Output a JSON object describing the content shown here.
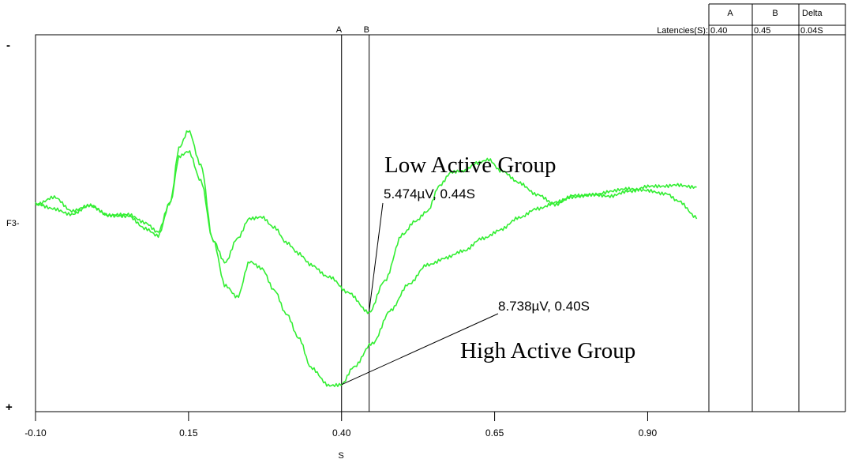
{
  "chart_data": {
    "type": "line",
    "xlabel": "S",
    "channel_label": "F3-",
    "polarity_top": "-",
    "polarity_bottom": "+",
    "xlim": [
      -0.1,
      1.0
    ],
    "x_ticks": [
      "-0.10",
      "0.15",
      "0.40",
      "0.65",
      "0.90"
    ],
    "cursors": [
      {
        "label": "A",
        "x": 0.4
      },
      {
        "label": "B",
        "x": 0.445
      }
    ],
    "latency_table": {
      "row_label": "Latencies(S):",
      "headers": [
        "A",
        "B",
        "Delta"
      ],
      "values": [
        "0.40",
        "0.45",
        "0.04S"
      ]
    },
    "series": [
      {
        "label": "Low Active Group",
        "color": "#33ee33",
        "points": [
          [
            -0.1,
            2.2
          ],
          [
            -0.07,
            3.2
          ],
          [
            -0.04,
            1.3
          ],
          [
            -0.01,
            2.1
          ],
          [
            0.02,
            1.0
          ],
          [
            0.05,
            0.9
          ],
          [
            0.08,
            0.0
          ],
          [
            0.1,
            -1.0
          ],
          [
            0.12,
            2.5
          ],
          [
            0.135,
            9.0
          ],
          [
            0.15,
            11.0
          ],
          [
            0.17,
            7.0
          ],
          [
            0.19,
            -2.0
          ],
          [
            0.21,
            -4.8
          ],
          [
            0.23,
            -2.0
          ],
          [
            0.25,
            0.5
          ],
          [
            0.27,
            0.8
          ],
          [
            0.29,
            -0.5
          ],
          [
            0.31,
            -2.5
          ],
          [
            0.33,
            -3.8
          ],
          [
            0.35,
            -5.0
          ],
          [
            0.38,
            -6.5
          ],
          [
            0.41,
            -8.5
          ],
          [
            0.445,
            -10.7
          ],
          [
            0.47,
            -7.0
          ],
          [
            0.5,
            -1.5
          ],
          [
            0.52,
            0.2
          ],
          [
            0.54,
            1.5
          ],
          [
            0.56,
            4.5
          ],
          [
            0.58,
            6.0
          ],
          [
            0.6,
            6.2
          ],
          [
            0.62,
            7.3
          ],
          [
            0.64,
            7.7
          ],
          [
            0.66,
            6.2
          ],
          [
            0.69,
            4.8
          ],
          [
            0.72,
            3.5
          ],
          [
            0.75,
            2.1
          ],
          [
            0.78,
            3.3
          ],
          [
            0.81,
            3.5
          ],
          [
            0.84,
            3.1
          ],
          [
            0.87,
            3.8
          ],
          [
            0.9,
            4.5
          ],
          [
            0.93,
            4.3
          ],
          [
            0.95,
            4.5
          ],
          [
            0.98,
            4.4
          ]
        ]
      },
      {
        "label": "High Active Group",
        "color": "#33ee33",
        "points": [
          [
            -0.1,
            2.2
          ],
          [
            -0.07,
            1.8
          ],
          [
            -0.04,
            1.0
          ],
          [
            -0.01,
            2.0
          ],
          [
            0.02,
            1.0
          ],
          [
            0.05,
            0.8
          ],
          [
            0.08,
            -0.8
          ],
          [
            0.1,
            -1.5
          ],
          [
            0.12,
            2.5
          ],
          [
            0.135,
            8.0
          ],
          [
            0.15,
            8.5
          ],
          [
            0.17,
            5.0
          ],
          [
            0.19,
            -2.0
          ],
          [
            0.21,
            -7.5
          ],
          [
            0.23,
            -9.0
          ],
          [
            0.25,
            -4.8
          ],
          [
            0.27,
            -5.5
          ],
          [
            0.29,
            -8.0
          ],
          [
            0.31,
            -11.0
          ],
          [
            0.33,
            -14.0
          ],
          [
            0.35,
            -17.5
          ],
          [
            0.38,
            -19.5
          ],
          [
            0.4,
            -19.5
          ],
          [
            0.42,
            -17.5
          ],
          [
            0.45,
            -14.5
          ],
          [
            0.48,
            -10.5
          ],
          [
            0.51,
            -7.5
          ],
          [
            0.54,
            -5.0
          ],
          [
            0.57,
            -4.2
          ],
          [
            0.6,
            -3.5
          ],
          [
            0.63,
            -1.8
          ],
          [
            0.66,
            -0.8
          ],
          [
            0.69,
            0.5
          ],
          [
            0.72,
            1.8
          ],
          [
            0.75,
            2.5
          ],
          [
            0.78,
            3.0
          ],
          [
            0.81,
            3.5
          ],
          [
            0.84,
            3.8
          ],
          [
            0.87,
            4.0
          ],
          [
            0.9,
            4.0
          ],
          [
            0.93,
            3.5
          ],
          [
            0.95,
            2.5
          ],
          [
            0.98,
            0.7
          ]
        ]
      }
    ],
    "annotations": [
      {
        "label": "Low Active Group",
        "value_text": "5.474µV, 0.44S",
        "point": [
          0.445,
          -10.7
        ]
      },
      {
        "label": "High Active Group",
        "value_text": "8.738µV, 0.40S",
        "point": [
          0.4,
          -19.5
        ]
      }
    ]
  }
}
